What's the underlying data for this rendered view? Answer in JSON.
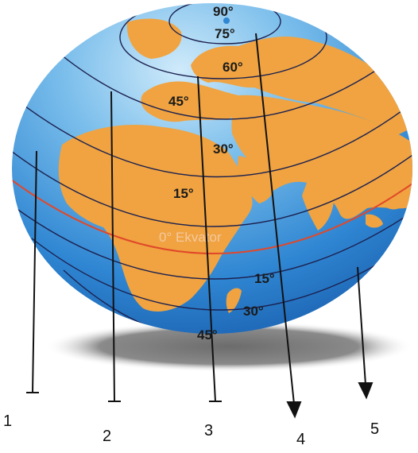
{
  "colors": {
    "ocean": "#2f86d2",
    "ocean_light": "#9fd1f2",
    "land": "#f0a340",
    "grid_line": "#1c2150",
    "equator_line": "#e0482a",
    "shadow": "#7a7a7a",
    "pointer": "#111111"
  },
  "latitude_labels": {
    "n90": "90°",
    "n75": "75°",
    "n60": "60°",
    "n45": "45°",
    "n30": "30°",
    "n15": "15°",
    "equator": "0° Ekvator",
    "s15": "15°",
    "s30": "30°",
    "s45": "45°"
  },
  "pointers": [
    {
      "label": "1",
      "end": "bar"
    },
    {
      "label": "2",
      "end": "bar"
    },
    {
      "label": "3",
      "end": "bar"
    },
    {
      "label": "4",
      "end": "arrow"
    },
    {
      "label": "5",
      "end": "arrow"
    }
  ]
}
